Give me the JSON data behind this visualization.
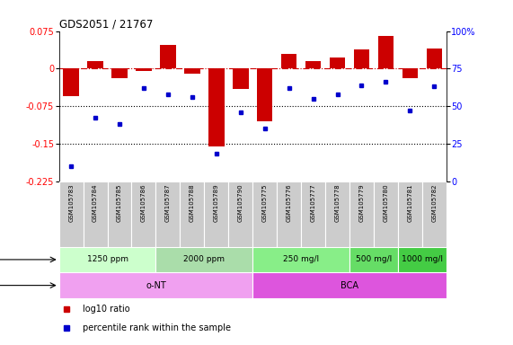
{
  "title": "GDS2051 / 21767",
  "samples": [
    "GSM105783",
    "GSM105784",
    "GSM105785",
    "GSM105786",
    "GSM105787",
    "GSM105788",
    "GSM105789",
    "GSM105790",
    "GSM105775",
    "GSM105776",
    "GSM105777",
    "GSM105778",
    "GSM105779",
    "GSM105780",
    "GSM105781",
    "GSM105782"
  ],
  "log10_ratio": [
    -0.055,
    0.015,
    -0.02,
    -0.005,
    0.048,
    -0.01,
    -0.155,
    -0.04,
    -0.105,
    0.03,
    0.015,
    0.022,
    0.038,
    0.065,
    -0.02,
    0.04
  ],
  "percentile_rank": [
    10,
    42,
    38,
    62,
    58,
    56,
    18,
    46,
    35,
    62,
    55,
    58,
    64,
    66,
    47,
    63
  ],
  "ylim_left": [
    -0.225,
    0.075
  ],
  "ylim_right": [
    0,
    100
  ],
  "yticks_left": [
    0.075,
    0,
    -0.075,
    -0.15,
    -0.225
  ],
  "yticks_right": [
    100,
    75,
    50,
    25,
    0
  ],
  "bar_color": "#cc0000",
  "dot_color": "#0000cc",
  "dotted_lines": [
    -0.075,
    -0.15
  ],
  "dose_groups": [
    {
      "label": "1250 ppm",
      "start": 0,
      "end": 3,
      "color": "#ccffcc"
    },
    {
      "label": "2000 ppm",
      "start": 4,
      "end": 7,
      "color": "#aaddaa"
    },
    {
      "label": "250 mg/l",
      "start": 8,
      "end": 11,
      "color": "#88ee88"
    },
    {
      "label": "500 mg/l",
      "start": 12,
      "end": 13,
      "color": "#66dd66"
    },
    {
      "label": "1000 mg/l",
      "start": 14,
      "end": 15,
      "color": "#44cc44"
    }
  ],
  "agent_groups": [
    {
      "label": "o-NT",
      "start": 0,
      "end": 7,
      "color": "#f0a0f0"
    },
    {
      "label": "BCA",
      "start": 8,
      "end": 15,
      "color": "#dd55dd"
    }
  ],
  "background_color": "#ffffff",
  "label_bg": "#cccccc",
  "label_border": "#aaaaaa"
}
